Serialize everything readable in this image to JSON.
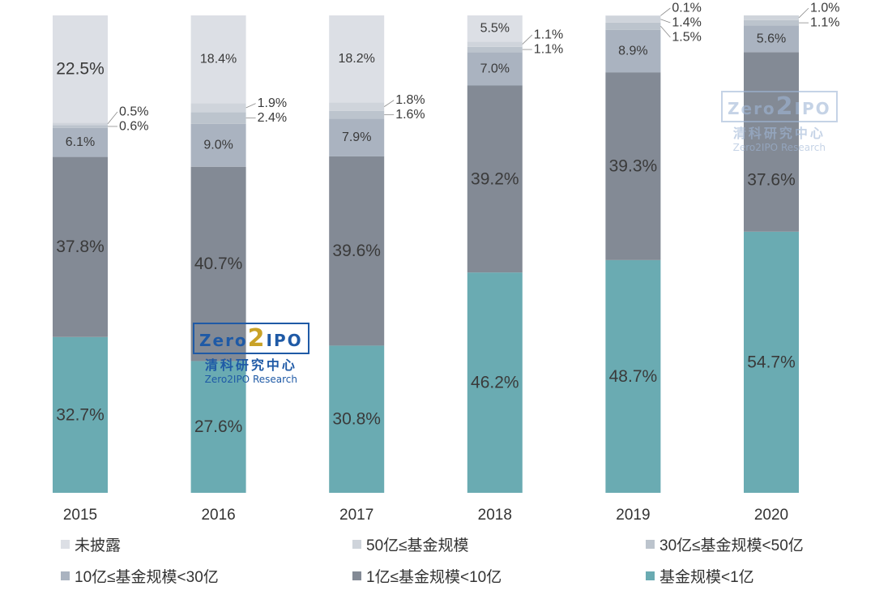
{
  "chart_data": {
    "type": "bar",
    "stacked": true,
    "percent": true,
    "categories": [
      "2015",
      "2016",
      "2017",
      "2018",
      "2019",
      "2020"
    ],
    "series": [
      {
        "name": "基金规模<1亿",
        "color": "#6aabb2",
        "values": [
          32.7,
          27.6,
          30.8,
          46.2,
          48.7,
          54.7
        ]
      },
      {
        "name": "1亿≤基金规模<10亿",
        "color": "#838a95",
        "values": [
          37.8,
          40.7,
          39.6,
          39.2,
          39.3,
          37.6
        ]
      },
      {
        "name": "10亿≤基金规模<30亿",
        "color": "#aab3c0",
        "values": [
          6.1,
          9.0,
          7.9,
          7.0,
          8.9,
          5.6
        ]
      },
      {
        "name": "30亿≤基金规模<50亿",
        "color": "#bcc4cd",
        "values": [
          0.6,
          2.4,
          1.6,
          1.1,
          1.5,
          1.1
        ]
      },
      {
        "name": "50亿≤基金规模",
        "color": "#cfd4db",
        "values": [
          0.5,
          1.9,
          1.8,
          1.1,
          1.4,
          1.0
        ]
      },
      {
        "name": "未披露",
        "color": "#dcdfe5",
        "values": [
          22.5,
          18.4,
          18.2,
          5.5,
          0.1,
          null
        ]
      }
    ],
    "legend_order": [
      5,
      4,
      3,
      2,
      1,
      0
    ],
    "legend_placement": "bottom",
    "ylim": [
      0,
      100
    ],
    "grid": false,
    "title": "",
    "xlabel": "",
    "ylabel": ""
  },
  "watermark": {
    "logo_left": "Zero",
    "logo_mid": "2",
    "logo_right": "IPO",
    "cn": "清科研究中心",
    "en": "Zero2IPO Research"
  }
}
